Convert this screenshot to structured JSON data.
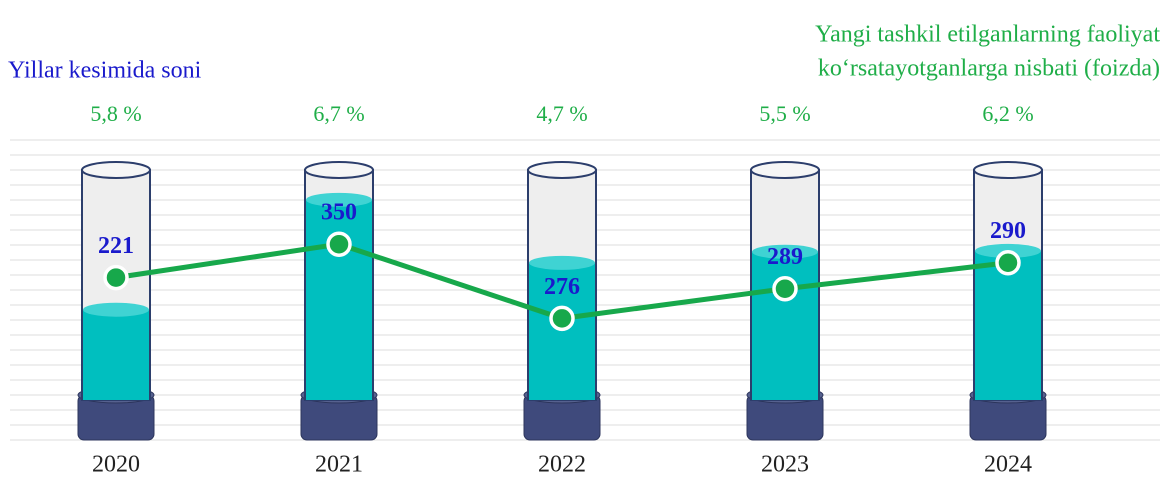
{
  "chart_data": {
    "type": "bar",
    "y_label": "Yillar kesimida soni",
    "y2_label": [
      "Yangi tashkil etilganlarning faoliyat",
      "ko‘rsatayotganlarga nisbati (foizda)"
    ],
    "categories": [
      "2020",
      "2021",
      "2022",
      "2023",
      "2024"
    ],
    "series": [
      {
        "type": "bar",
        "color": "#00bfbf",
        "values": [
          221,
          350,
          276,
          289,
          290
        ]
      },
      {
        "type": "line",
        "axis": "y2",
        "color": "#17a84b",
        "values": [
          5.8,
          6.7,
          4.7,
          5.5,
          6.2
        ],
        "value_labels": [
          "5,8 %",
          "6,7 %",
          "4,7 %",
          "5,5 %",
          "6,2 %"
        ]
      }
    ],
    "ylim": [
      115,
      385
    ],
    "y2lim": [
      2.5,
      8.7
    ]
  }
}
